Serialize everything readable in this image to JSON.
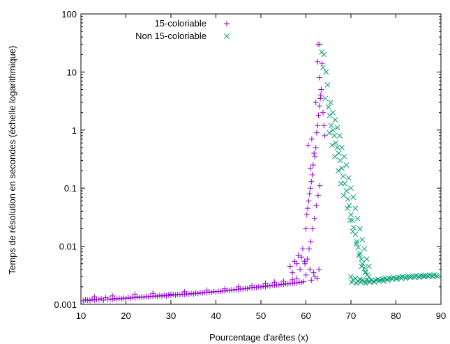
{
  "chart_data": {
    "type": "scatter",
    "title": "",
    "xlabel": "Pourcentage d'arêtes (x)",
    "ylabel": "Temps de résolution en secondes (échelle logarithmique)",
    "xlim": [
      10,
      90
    ],
    "ylim": [
      0.001,
      100
    ],
    "yscale": "log",
    "xticks": [
      10,
      20,
      30,
      40,
      50,
      60,
      70,
      80,
      90
    ],
    "yticks": [
      0.001,
      0.01,
      0.1,
      1,
      10,
      100
    ],
    "ytick_labels": [
      "0.001",
      "0.01",
      "0.1",
      "1",
      "10",
      "100"
    ],
    "grid": false,
    "legend": "top-left",
    "series": [
      {
        "name": "15-coloriable",
        "marker": "plus",
        "color": "#9400d3",
        "points": [
          [
            10.5,
            0.00115
          ],
          [
            11,
            0.0012
          ],
          [
            11.5,
            0.00118
          ],
          [
            12,
            0.00117
          ],
          [
            12.5,
            0.00122
          ],
          [
            13,
            0.00119
          ],
          [
            13.5,
            0.00121
          ],
          [
            14,
            0.0012
          ],
          [
            14.5,
            0.00125
          ],
          [
            15,
            0.00118
          ],
          [
            15.5,
            0.0013
          ],
          [
            16,
            0.00122
          ],
          [
            16.5,
            0.00124
          ],
          [
            17,
            0.00121
          ],
          [
            17.5,
            0.00126
          ],
          [
            18,
            0.00123
          ],
          [
            18.5,
            0.00127
          ],
          [
            19,
            0.00124
          ],
          [
            19.5,
            0.00128
          ],
          [
            20,
            0.00125
          ],
          [
            20.5,
            0.00131
          ],
          [
            21,
            0.00127
          ],
          [
            21.5,
            0.00133
          ],
          [
            22,
            0.00129
          ],
          [
            22.5,
            0.00135
          ],
          [
            23,
            0.00131
          ],
          [
            23.5,
            0.00134
          ],
          [
            24,
            0.00132
          ],
          [
            24.5,
            0.00136
          ],
          [
            25,
            0.00134
          ],
          [
            25.5,
            0.00138
          ],
          [
            26,
            0.00136
          ],
          [
            26.5,
            0.0014
          ],
          [
            27,
            0.00137
          ],
          [
            27.5,
            0.00142
          ],
          [
            28,
            0.00139
          ],
          [
            28.5,
            0.00143
          ],
          [
            29,
            0.0014
          ],
          [
            29.5,
            0.00145
          ],
          [
            30,
            0.00142
          ],
          [
            30.5,
            0.00147
          ],
          [
            31,
            0.00144
          ],
          [
            31.5,
            0.00148
          ],
          [
            32,
            0.00146
          ],
          [
            32.5,
            0.0015
          ],
          [
            33,
            0.00148
          ],
          [
            33.5,
            0.00152
          ],
          [
            34,
            0.0015
          ],
          [
            34.5,
            0.00154
          ],
          [
            35,
            0.00151
          ],
          [
            35.5,
            0.00156
          ],
          [
            36,
            0.00154
          ],
          [
            36.5,
            0.00158
          ],
          [
            37,
            0.00156
          ],
          [
            37.5,
            0.0016
          ],
          [
            38,
            0.00158
          ],
          [
            38.5,
            0.00163
          ],
          [
            39,
            0.0016
          ],
          [
            39.5,
            0.00166
          ],
          [
            40,
            0.00163
          ],
          [
            40.5,
            0.00168
          ],
          [
            41,
            0.00166
          ],
          [
            41.5,
            0.00171
          ],
          [
            42,
            0.00169
          ],
          [
            42.5,
            0.00174
          ],
          [
            43,
            0.00172
          ],
          [
            43.5,
            0.00178
          ],
          [
            44,
            0.00175
          ],
          [
            44.5,
            0.00181
          ],
          [
            45,
            0.00179
          ],
          [
            45.5,
            0.00185
          ],
          [
            46,
            0.00183
          ],
          [
            46.5,
            0.00189
          ],
          [
            47,
            0.00187
          ],
          [
            47.5,
            0.00193
          ],
          [
            48,
            0.00191
          ],
          [
            48.5,
            0.00197
          ],
          [
            49,
            0.00195
          ],
          [
            49.5,
            0.00201
          ],
          [
            50,
            0.00199
          ],
          [
            50.5,
            0.00205
          ],
          [
            51,
            0.00203
          ],
          [
            51.5,
            0.00209
          ],
          [
            52,
            0.00207
          ],
          [
            52.5,
            0.00213
          ],
          [
            53,
            0.00211
          ],
          [
            53.5,
            0.00217
          ],
          [
            54,
            0.00215
          ],
          [
            54.5,
            0.00221
          ],
          [
            55,
            0.00219
          ],
          [
            55.5,
            0.00226
          ],
          [
            56,
            0.00224
          ],
          [
            56.5,
            0.0023
          ],
          [
            57,
            0.00228
          ],
          [
            57.5,
            0.00235
          ],
          [
            58,
            0.00233
          ],
          [
            58.5,
            0.0024
          ],
          [
            59,
            0.00238
          ],
          [
            59.5,
            0.00245
          ],
          [
            13,
            0.00135
          ],
          [
            17,
            0.0014
          ],
          [
            22,
            0.0015
          ],
          [
            26,
            0.00155
          ],
          [
            30,
            0.0015
          ],
          [
            33,
            0.00165
          ],
          [
            38,
            0.00175
          ],
          [
            42,
            0.00185
          ],
          [
            45,
            0.002
          ],
          [
            48,
            0.0021
          ],
          [
            51,
            0.0023
          ],
          [
            53,
            0.0024
          ],
          [
            55,
            0.0025
          ],
          [
            57,
            0.00265
          ],
          [
            58,
            0.0028
          ],
          [
            56.5,
            0.0045
          ],
          [
            57,
            0.0035
          ],
          [
            57.5,
            0.0055
          ],
          [
            58,
            0.005
          ],
          [
            58.3,
            0.007
          ],
          [
            58.7,
            0.004
          ],
          [
            59,
            0.0065
          ],
          [
            59.3,
            0.009
          ],
          [
            59.7,
            0.0055
          ],
          [
            60,
            0.02
          ],
          [
            60.2,
            0.035
          ],
          [
            60.4,
            0.045
          ],
          [
            60.6,
            0.06
          ],
          [
            60.8,
            0.08
          ],
          [
            61,
            0.1
          ],
          [
            61.2,
            0.13
          ],
          [
            61.4,
            0.17
          ],
          [
            61,
            0.22
          ],
          [
            61.6,
            0.25
          ],
          [
            62,
            0.35
          ],
          [
            62.2,
            0.5
          ],
          [
            61.8,
            0.4
          ],
          [
            60.5,
            0.55
          ],
          [
            61.3,
            0.7
          ],
          [
            62.4,
            0.9
          ],
          [
            62.6,
            1.2
          ],
          [
            62.8,
            1.8
          ],
          [
            63,
            2.6
          ],
          [
            62.2,
            3.0
          ],
          [
            63.2,
            3.5
          ],
          [
            63.4,
            5.0
          ],
          [
            63,
            8.0
          ],
          [
            62.6,
            15.0
          ],
          [
            62.7,
            30.0
          ],
          [
            63.1,
            30.0
          ],
          [
            63.6,
            14.0
          ],
          [
            63.3,
            4.0
          ],
          [
            63.8,
            2.0
          ],
          [
            64,
            1.2
          ],
          [
            64.2,
            0.8
          ],
          [
            60.3,
            0.006
          ],
          [
            60.7,
            0.009
          ],
          [
            61.1,
            0.012
          ],
          [
            61.5,
            0.02
          ],
          [
            61.9,
            0.03
          ],
          [
            62.3,
            0.05
          ],
          [
            62.7,
            0.075
          ],
          [
            63.1,
            0.11
          ],
          [
            59.8,
            0.005
          ],
          [
            60.9,
            0.004
          ],
          [
            61.7,
            0.0035
          ],
          [
            62.5,
            0.0028
          ],
          [
            60,
            0.0032
          ],
          [
            61.2,
            0.0026
          ],
          [
            62,
            0.003
          ],
          [
            62.9,
            0.004
          ]
        ]
      },
      {
        "name": "Non 15-coloriable",
        "marker": "x",
        "color": "#009e73",
        "points": [
          [
            63.5,
            22.0
          ],
          [
            64,
            20.0
          ],
          [
            64.5,
            10.0
          ],
          [
            64.8,
            6.0
          ],
          [
            63.8,
            12.0
          ],
          [
            64.3,
            3.5
          ],
          [
            65,
            2.5
          ],
          [
            65.3,
            1.8
          ],
          [
            65.6,
            1.2
          ],
          [
            66,
            1.0
          ],
          [
            66.3,
            0.8
          ],
          [
            66.6,
            0.6
          ],
          [
            67,
            0.5
          ],
          [
            67.3,
            0.4
          ],
          [
            67.6,
            0.3
          ],
          [
            68,
            0.22
          ],
          [
            68.3,
            0.16
          ],
          [
            68.6,
            0.12
          ],
          [
            69,
            0.09
          ],
          [
            69.3,
            0.065
          ],
          [
            69.6,
            0.05
          ],
          [
            70,
            0.035
          ],
          [
            70.3,
            0.028
          ],
          [
            70.6,
            0.021
          ],
          [
            71,
            0.016
          ],
          [
            71.3,
            0.012
          ],
          [
            71.6,
            0.0095
          ],
          [
            72,
            0.0075
          ],
          [
            72.3,
            0.006
          ],
          [
            72.6,
            0.005
          ],
          [
            73,
            0.0042
          ],
          [
            73.3,
            0.0036
          ],
          [
            73.6,
            0.0032
          ],
          [
            74,
            0.003
          ],
          [
            65.5,
            3.0
          ],
          [
            66,
            2.0
          ],
          [
            66.5,
            1.5
          ],
          [
            67,
            1.1
          ],
          [
            67.5,
            0.8
          ],
          [
            68,
            0.5
          ],
          [
            68.5,
            0.35
          ],
          [
            69,
            0.25
          ],
          [
            69.5,
            0.15
          ],
          [
            70,
            0.1
          ],
          [
            70.5,
            0.07
          ],
          [
            71,
            0.045
          ],
          [
            71.5,
            0.03
          ],
          [
            72,
            0.02
          ],
          [
            72.5,
            0.013
          ],
          [
            73,
            0.009
          ],
          [
            73.5,
            0.006
          ],
          [
            74,
            0.0045
          ],
          [
            65.2,
            0.9
          ],
          [
            65.8,
            0.55
          ],
          [
            66.4,
            0.35
          ],
          [
            67.2,
            0.2
          ],
          [
            67.8,
            0.12
          ],
          [
            68.4,
            0.075
          ],
          [
            69.2,
            0.045
          ],
          [
            69.8,
            0.028
          ],
          [
            70.4,
            0.018
          ],
          [
            71.2,
            0.011
          ],
          [
            71.8,
            0.007
          ],
          [
            72.4,
            0.0045
          ],
          [
            73.2,
            0.0035
          ],
          [
            70,
            0.003
          ],
          [
            70.5,
            0.0026
          ],
          [
            71,
            0.0028
          ],
          [
            71.5,
            0.0025
          ],
          [
            72,
            0.0027
          ],
          [
            72.5,
            0.0026
          ],
          [
            73,
            0.0025
          ],
          [
            73.5,
            0.0026
          ],
          [
            74,
            0.0025
          ],
          [
            74.5,
            0.0026
          ],
          [
            75,
            0.0025
          ],
          [
            75.5,
            0.0026
          ],
          [
            76,
            0.0027
          ],
          [
            76.5,
            0.0026
          ],
          [
            77,
            0.0027
          ],
          [
            77.5,
            0.0028
          ],
          [
            78,
            0.0027
          ],
          [
            78.5,
            0.0028
          ],
          [
            79,
            0.0028
          ],
          [
            79.5,
            0.0029
          ],
          [
            80,
            0.0028
          ],
          [
            80.5,
            0.0029
          ],
          [
            81,
            0.0029
          ],
          [
            81.5,
            0.003
          ],
          [
            82,
            0.0029
          ],
          [
            82.5,
            0.003
          ],
          [
            83,
            0.003
          ],
          [
            83.5,
            0.003
          ],
          [
            84,
            0.003
          ],
          [
            84.5,
            0.0031
          ],
          [
            85,
            0.003
          ],
          [
            85.5,
            0.0031
          ],
          [
            86,
            0.0031
          ],
          [
            86.5,
            0.0031
          ],
          [
            87,
            0.0031
          ],
          [
            87.5,
            0.0032
          ],
          [
            88,
            0.0031
          ],
          [
            88.5,
            0.0032
          ],
          [
            89,
            0.0031
          ],
          [
            70.2,
            0.0024
          ],
          [
            71.2,
            0.0023
          ],
          [
            72.2,
            0.0024
          ],
          [
            73.2,
            0.0023
          ],
          [
            74.2,
            0.0024
          ],
          [
            75.2,
            0.0024
          ],
          [
            76.2,
            0.0025
          ],
          [
            77.2,
            0.0025
          ],
          [
            78.2,
            0.0026
          ],
          [
            79.2,
            0.0027
          ],
          [
            80.2,
            0.0027
          ],
          [
            81.2,
            0.0028
          ],
          [
            82.2,
            0.0028
          ],
          [
            83.2,
            0.0029
          ],
          [
            84.2,
            0.0029
          ],
          [
            85.2,
            0.0029
          ],
          [
            86.2,
            0.003
          ],
          [
            87.2,
            0.003
          ],
          [
            88.2,
            0.003
          ],
          [
            89.2,
            0.003
          ]
        ]
      }
    ]
  }
}
